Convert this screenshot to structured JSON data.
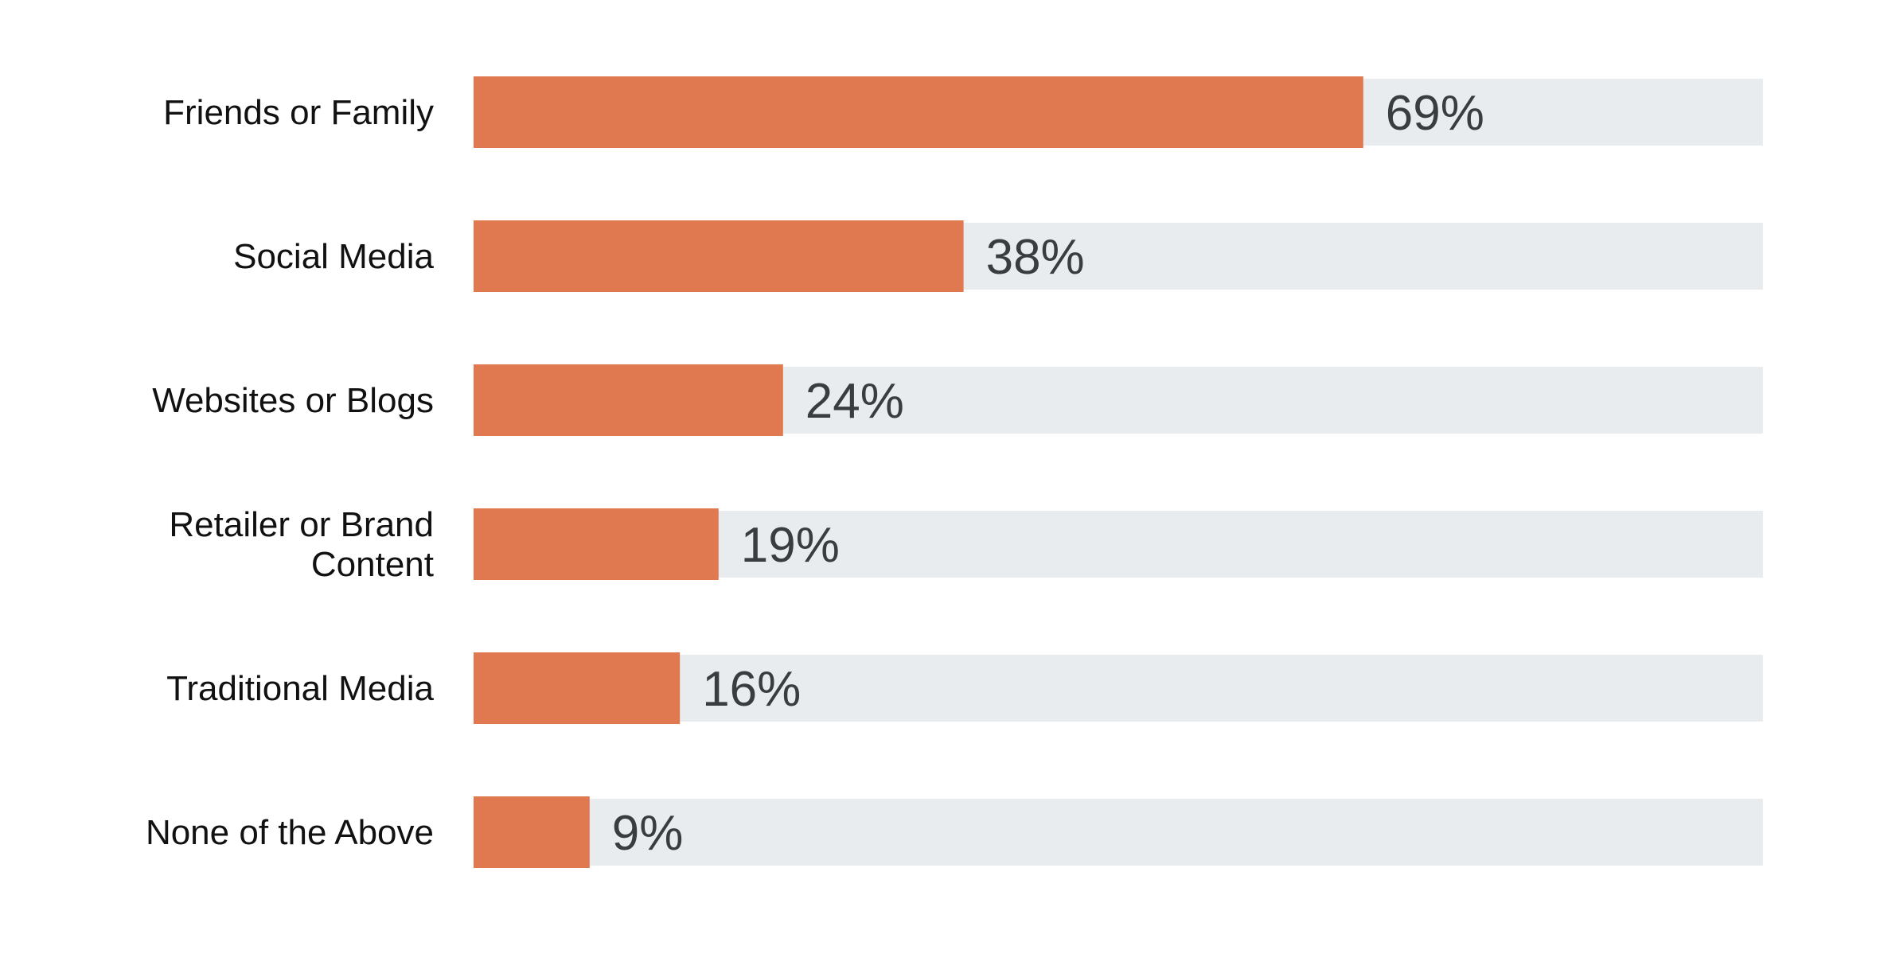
{
  "chart_data": {
    "type": "bar",
    "orientation": "horizontal",
    "title": "",
    "xlabel": "",
    "ylabel": "",
    "xlim": [
      0,
      100
    ],
    "grid": false,
    "legend": "none",
    "bar_color": "#e07850",
    "track_color": "#e8ecef",
    "label_color": "#111111",
    "value_label_color": "#3a3d40",
    "categories": [
      "Friends or Family",
      "Social Media",
      "Websites or Blogs",
      "Retailer or Brand Content",
      "Traditional Media",
      "None of the Above"
    ],
    "category_label_lines": [
      [
        "Friends or Family"
      ],
      [
        "Social Media"
      ],
      [
        "Websites or Blogs"
      ],
      [
        "Retailer or Brand",
        "Content"
      ],
      [
        "Traditional Media"
      ],
      [
        "None of the Above"
      ]
    ],
    "values": [
      69,
      38,
      24,
      19,
      16,
      9
    ],
    "value_labels": [
      "69%",
      "38%",
      "24%",
      "19%",
      "16%",
      "9%"
    ]
  }
}
